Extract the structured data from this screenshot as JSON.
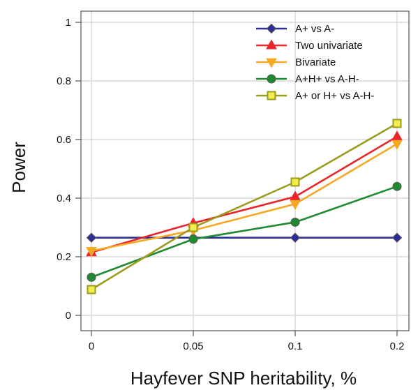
{
  "chart_data": {
    "type": "line",
    "title": "",
    "xlabel": "Hayfever SNP heritability, %",
    "ylabel": "Power",
    "x": [
      0,
      0.05,
      0.1,
      0.2
    ],
    "xtick_labels": [
      "0",
      "0.05",
      "0.1",
      "0.2"
    ],
    "ylim": [
      0,
      1
    ],
    "yticks": [
      0,
      0.2,
      0.4,
      0.6,
      0.8,
      1
    ],
    "ytick_labels": [
      "0",
      "0.2",
      "0.4",
      "0.6",
      "0.8",
      "1"
    ],
    "grid": true,
    "legend_position": "top-right",
    "series": [
      {
        "name": "A+ vs A-",
        "color": "#2b2f97",
        "marker": "diamond",
        "values": [
          0.265,
          0.265,
          0.265,
          0.265
        ]
      },
      {
        "name": "Two univariate",
        "color": "#e8262b",
        "marker": "triangle-up",
        "values": [
          0.215,
          0.315,
          0.405,
          0.61
        ]
      },
      {
        "name": "Bivariate",
        "color": "#f7a823",
        "marker": "triangle-down",
        "values": [
          0.22,
          0.29,
          0.38,
          0.585
        ]
      },
      {
        "name": "A+H+ vs A-H-",
        "color": "#1f8a2f",
        "marker": "circle",
        "values": [
          0.13,
          0.26,
          0.318,
          0.44
        ]
      },
      {
        "name": "A+ or H+ vs A-H-",
        "color": "#9b9b1e",
        "marker": "square",
        "values": [
          0.088,
          0.3,
          0.455,
          0.655
        ]
      }
    ]
  }
}
